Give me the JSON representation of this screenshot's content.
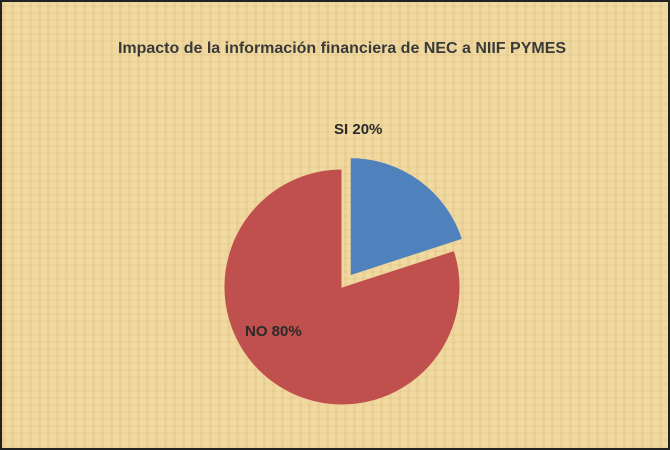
{
  "chart_data": {
    "type": "pie",
    "title": "Impacto de la información financiera de NEC a NIIF PYMES",
    "categories": [
      "SI",
      "NO"
    ],
    "values": [
      20,
      80
    ],
    "value_labels": [
      "20%",
      "80%"
    ],
    "colors": [
      "#4f81bd",
      "#c0504d"
    ]
  }
}
